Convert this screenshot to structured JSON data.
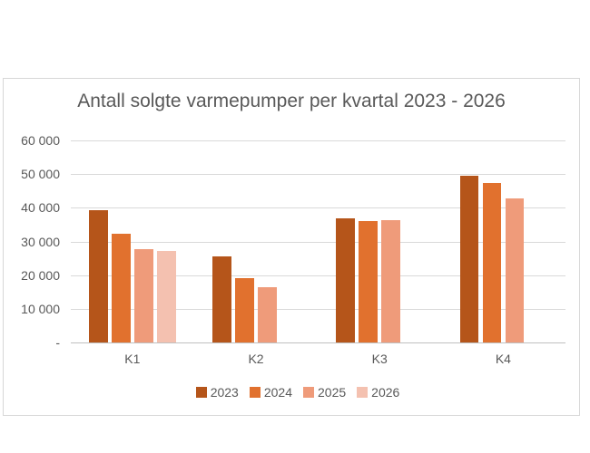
{
  "chart_data": {
    "type": "bar",
    "title": "Antall solgte varmepumper per kvartal 2023 - 2026",
    "categories": [
      "K1",
      "K2",
      "K3",
      "K4"
    ],
    "series": [
      {
        "name": "2023",
        "color": "#B5551A",
        "values": [
          39400,
          25500,
          36900,
          49500
        ]
      },
      {
        "name": "2024",
        "color": "#E1712E",
        "values": [
          32400,
          19000,
          36200,
          47400
        ]
      },
      {
        "name": "2025",
        "color": "#EF9B7A",
        "values": [
          27700,
          16300,
          36300,
          42700
        ]
      },
      {
        "name": "2026",
        "color": "#F4C1B0",
        "values": [
          27300,
          null,
          null,
          null
        ]
      }
    ],
    "ylim": [
      0,
      60000
    ],
    "ytick_step": 10000,
    "yticks": [
      {
        "value": 60000,
        "label": "60 000"
      },
      {
        "value": 50000,
        "label": "50 000"
      },
      {
        "value": 40000,
        "label": "40 000"
      },
      {
        "value": 30000,
        "label": "30 000"
      },
      {
        "value": 20000,
        "label": "20 000"
      },
      {
        "value": 10000,
        "label": "10 000"
      },
      {
        "value": 0,
        "label": "-"
      }
    ],
    "grid": true,
    "legend_position": "bottom",
    "colors": {
      "text": "#595959",
      "gridline": "#D9D9D9",
      "axis_line": "#BFBFBF",
      "chart_border": "#D7D7D7",
      "background": "#FFFFFF"
    }
  }
}
